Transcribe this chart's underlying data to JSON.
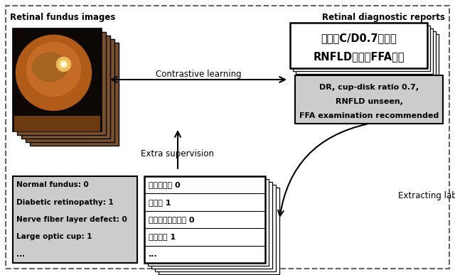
{
  "bg_color": "#ffffff",
  "label_retinal_fundus": "Retinal fundus images",
  "label_retinal_reports": "Retinal diagnostic reports",
  "label_contrastive": "Contrastive learning",
  "label_extra_supervision": "Extra supervision",
  "label_extracting": "Extracting labels",
  "chinese_report_lines": [
    "糖网，C/D0.7，未见",
    "RNFLD，建诺FFA检查"
  ],
  "english_report_lines": [
    "DR, cup-disk ratio 0.7,",
    "RNFLD unseen,",
    "FFA examination recommended"
  ],
  "chinese_label_lines": [
    "正常眼底： 0",
    "糖网： 1",
    "神经纤维层缺损： 0",
    "大视杯： 1",
    "..."
  ],
  "english_label_lines": [
    "Normal fundus: 0",
    "Diabetic retinopathy: 1",
    "Nerve fiber layer defect: 0",
    "Large optic cup: 1",
    "..."
  ],
  "gray_box_color": "#cccccc",
  "dashed_border_color": "#666666",
  "figsize": [
    6.4,
    3.87
  ],
  "dpi": 100
}
